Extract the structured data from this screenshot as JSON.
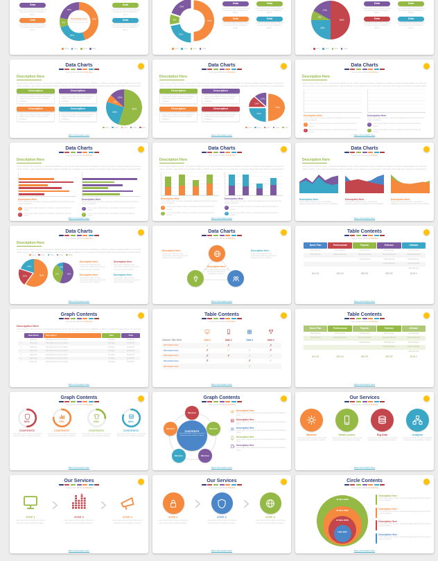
{
  "theme": {
    "navy": "#2d3d77",
    "red": "#c4464d",
    "green": "#94b944",
    "green_light": "#aec878",
    "purple": "#7d5aa0",
    "orange": "#f5893d",
    "teal": "#3aa7c7",
    "blue": "#4a86c8",
    "yellow": "#ffc20e",
    "check": "#7ab648",
    "cross": "#cc4b4b",
    "bg": "#ededed"
  },
  "common": {
    "subtitle": "Your great subtitle",
    "subtitle_accent": "in this line",
    "footer_link": "More information here",
    "desc_heading": "Description Here",
    "desc_button": "Description",
    "data_pill": "Data",
    "legend_label": "Data",
    "para_long": "Lorem ipsum dolor sit amet, consectetur adipiscing elit, sed do eiusmod tempor incididunt ut labore et dolore magna aliqua. Ut enim ad minim veniam, quis nostrud exercitation ullamco laboris nisi ut aliquip ex ea commodo consequat. Duis aute irure dolor in reprehenderit in voluptate velit esse cillum.",
    "para_small": "Lorem ipsum dolor sit amet, consectetur adipiscing elit sed do eiusmod tempor incididunt.",
    "para_tiny": "Lorem ipsum dolor sit amet, elit sed do eiusmod tempor incididunt ut labore.",
    "bullet_text": "Lorem ipsum dolor sit amet, consectetur elit sed do eiusmod tempor.",
    "dash_colors": [
      "#2d3d77",
      "#c4464d",
      "#94b944",
      "#7d5aa0",
      "#f5893d",
      "#3aa7c7",
      "#9e3a40"
    ]
  },
  "slides": [
    {
      "type": "donut_callouts",
      "donut": {
        "values": [
          45,
          25,
          8,
          22
        ],
        "colors": [
          "orange",
          "teal",
          "green",
          "purple"
        ],
        "labels": [
          "45%",
          "25%",
          "8%",
          "22%"
        ],
        "center_title": "Description Here"
      },
      "pills_left": [
        "purple",
        "orange"
      ],
      "pills_right": [
        "green",
        "teal"
      ]
    },
    {
      "type": "donut_exploded",
      "donut": {
        "values": [
          50,
          22,
          8,
          20
        ],
        "colors": [
          "orange",
          "teal",
          "green",
          "purple"
        ],
        "labels": [
          "50%",
          "22%",
          "8%",
          "20%"
        ]
      },
      "pills": [
        "purple",
        "green",
        "orange",
        "teal"
      ]
    },
    {
      "type": "pie_callouts",
      "pie": {
        "values": [
          50,
          25,
          8,
          17
        ],
        "colors": [
          "red",
          "teal",
          "green",
          "purple"
        ],
        "labels": [
          "50%",
          "25%",
          "8%",
          "17%"
        ]
      },
      "pills": [
        "purple",
        "green",
        "red",
        "teal"
      ]
    },
    {
      "type": "pie_desc",
      "title": "Data Charts",
      "buttons": [
        "green",
        "purple",
        "orange",
        "teal"
      ],
      "pie": {
        "values": [
          55,
          25,
          7,
          13
        ],
        "colors": [
          "green",
          "teal",
          "orange",
          "purple"
        ],
        "labels": [
          "55%",
          "25%",
          "7%",
          "13%"
        ]
      },
      "legend": [
        "green",
        "teal",
        "orange",
        "purple",
        "red"
      ]
    },
    {
      "type": "pie_desc",
      "title": "Data Charts",
      "pie3d": true,
      "buttons": [
        "green",
        "purple",
        "orange",
        "red"
      ],
      "pie": {
        "values": [
          50,
          25,
          13,
          12
        ],
        "colors": [
          "orange",
          "teal",
          "red",
          "purple"
        ],
        "labels": [
          "50%",
          "25%",
          "13%",
          "12%"
        ]
      },
      "legend": [
        "orange",
        "teal",
        "red",
        "purple",
        "green"
      ]
    },
    {
      "type": "grouped_bars",
      "title": "Data Charts",
      "charts": [
        {
          "colors": [
            "orange",
            "red"
          ],
          "pairs": [
            [
              45,
              80
            ],
            [
              55,
              92
            ],
            [
              70,
              40
            ],
            [
              90,
              58
            ]
          ],
          "accent": "orange",
          "bullets": [
            "orange",
            "red"
          ]
        },
        {
          "colors": [
            "purple",
            "green"
          ],
          "pairs": [
            [
              48,
              78
            ],
            [
              55,
              95
            ],
            [
              60,
              45
            ],
            [
              85,
              50
            ]
          ],
          "accent": "purple",
          "bullets": [
            "purple",
            "green"
          ]
        }
      ]
    },
    {
      "type": "hbars",
      "title": "Data Charts",
      "charts": [
        {
          "colors": [
            "orange",
            "red"
          ],
          "values": [
            62,
            95,
            50,
            75,
            88,
            45
          ],
          "accent": "orange",
          "bullets": [
            "orange",
            "red"
          ]
        },
        {
          "colors": [
            "purple",
            "green"
          ],
          "values": [
            95,
            55,
            70,
            45,
            88,
            65
          ],
          "accent": "purple",
          "bullets": [
            "purple",
            "green"
          ]
        }
      ]
    },
    {
      "type": "stacked_bars",
      "title": "Data Charts",
      "charts": [
        {
          "colors": [
            "orange",
            "green"
          ],
          "cols": [
            [
              38,
              48
            ],
            [
              45,
              50
            ],
            [
              42,
              28
            ],
            [
              52,
              45
            ]
          ],
          "accent": "orange",
          "bullets": [
            "orange",
            "green"
          ]
        },
        {
          "colors": [
            "purple",
            "teal"
          ],
          "cols": [
            [
              45,
              50
            ],
            [
              40,
              55
            ],
            [
              32,
              22
            ],
            [
              48,
              30
            ]
          ],
          "accent": "purple",
          "bullets": [
            "purple",
            "teal"
          ]
        }
      ]
    },
    {
      "type": "areas",
      "title": "Data Charts",
      "charts": [
        {
          "back": "purple",
          "main": "teal",
          "back_pts": [
            0.55,
            0.75,
            0.52,
            0.9,
            0.62,
            0.78,
            0.85
          ],
          "main_pts": [
            0.5,
            0.62,
            0.45,
            0.78,
            0.5,
            0.4,
            0.45
          ],
          "accent": "teal"
        },
        {
          "back": "blue",
          "main": "red",
          "back_pts": [
            0.85,
            0.55,
            0.5,
            0.55,
            0.62,
            0.8,
            0.9
          ],
          "main_pts": [
            0.55,
            0.62,
            0.68,
            0.6,
            0.52,
            0.45,
            0.4
          ],
          "accent": "red"
        },
        {
          "back": "green",
          "main": "orange",
          "back_pts": [
            0.9,
            0.62,
            0.45,
            0.4,
            0.42,
            0.5,
            0.6
          ],
          "main_pts": [
            0.75,
            0.55,
            0.48,
            0.45,
            0.5,
            0.55,
            0.5
          ],
          "accent": "orange"
        }
      ]
    },
    {
      "type": "two_pies",
      "title": "Data Charts",
      "legend": [
        "orange",
        "red",
        "teal",
        "purple",
        "green"
      ],
      "pie1": {
        "values": [
          60,
          20,
          20
        ],
        "colors": [
          "orange",
          "red",
          "teal"
        ],
        "labels": [
          "60%",
          "20%",
          "20%"
        ]
      },
      "pie2": {
        "values": [
          55,
          35,
          10
        ],
        "colors": [
          "purple",
          "green",
          "teal"
        ],
        "labels": [
          "55%",
          "35%",
          "10%"
        ]
      },
      "blocks": [
        "orange",
        "red",
        "orange",
        "teal"
      ]
    },
    {
      "type": "triangle",
      "title": "Data Charts",
      "nodes": [
        {
          "color": "orange",
          "icon": "globe"
        },
        {
          "color": "green",
          "icon": "diamond"
        },
        {
          "color": "blue",
          "icon": "people"
        }
      ],
      "center_color": "orange",
      "side_colors": [
        "orange",
        "teal"
      ]
    },
    {
      "type": "pricing",
      "title": "Table Contents",
      "palette": [
        "blue",
        "red",
        "green",
        "purple",
        "teal"
      ],
      "headers": [
        "Basic Plan",
        "Professional",
        "Popular",
        "Extreme",
        "Ultimate"
      ],
      "rows": [
        [
          "First Service",
          "First Service",
          "First Service",
          "First Service",
          "First Service"
        ],
        [
          "First Service",
          "Second Service",
          "Second Service",
          "Second Service",
          "Second Service"
        ],
        [
          "-",
          "-",
          "Third Service",
          "Third Service",
          "Third Service"
        ],
        [
          "-",
          "-",
          "-",
          "Fourth Service",
          "Fourth Service"
        ],
        [
          "-",
          "-",
          "-",
          "-",
          "Fifth Service"
        ]
      ],
      "prices": [
        "$10.00",
        "$29.00",
        "$50.99",
        "$99.99",
        "$129.0"
      ]
    },
    {
      "type": "data_table",
      "title": "Graph Contents",
      "accent": "red",
      "headers": [
        "Data Name",
        "Description",
        "Date",
        "Total"
      ],
      "header_colors": [
        "purple",
        "orange",
        "green",
        "purple"
      ],
      "rows": [
        [
          "1",
          "Data Here",
          "Information here in the column",
          "Thursday",
          "$1,000.00"
        ],
        [
          "2",
          "Data Here",
          "Information here in the column",
          "Thursday",
          "$1,000.00"
        ],
        [
          "3",
          "Data Here",
          "Information here in the column",
          "Thursday",
          "$1,000.00"
        ],
        [
          "4",
          "Data Here",
          "Information here in the column",
          "Thursday",
          "$1,000.00"
        ],
        [
          "5",
          "Data Here",
          "Information here in the column",
          "Thursday",
          "$1,000.00"
        ],
        [
          "6",
          "Data Here",
          "Information here in the column",
          "Thursday",
          "$1,000.00"
        ],
        [
          "7",
          "Data Here",
          "Information here in the column",
          "Thursday",
          "$1,000.00"
        ]
      ]
    },
    {
      "type": "check_table",
      "title": "Table Contents",
      "corner": "Column Title Here",
      "row_label": "Information Here",
      "cols": [
        {
          "label": "Data 1",
          "color": "orange",
          "icon": "monitor"
        },
        {
          "label": "Data 2",
          "color": "red",
          "icon": "phone"
        },
        {
          "label": "Data 3",
          "color": "blue",
          "icon": "grid"
        },
        {
          "label": "Data 4",
          "color": "red",
          "icon": "trophy"
        }
      ],
      "row_colors": [
        "orange",
        "blue",
        "orange",
        "blue",
        "orange"
      ],
      "marks": [
        [
          "check",
          "cross",
          "",
          "cross"
        ],
        [
          "cross",
          "check",
          "check",
          "cross"
        ],
        [
          "cross",
          "cross",
          "check",
          "check"
        ],
        [
          "cross",
          "",
          "cross",
          "check"
        ],
        [
          "",
          "",
          "check",
          ""
        ]
      ]
    },
    {
      "type": "pricing",
      "title": "Table Contents",
      "tint": "green",
      "palette": [
        "green_light",
        "green",
        "green_light",
        "green",
        "green_light"
      ],
      "headers": [
        "Basic Plan",
        "Professional",
        "Popular",
        "Extreme",
        "Ultimate"
      ],
      "rows": [
        [
          "First Service",
          "First Service",
          "First Service",
          "First Service",
          "First Service"
        ],
        [
          "First Service",
          "Second Service",
          "Second Service",
          "Second Service",
          "Second Service"
        ],
        [
          "-",
          "-",
          "Third Service",
          "Third Service",
          "Third Service"
        ],
        [
          "-",
          "-",
          "-",
          "Fourth Service",
          "Fourth Service"
        ],
        [
          "-",
          "-",
          "-",
          "-",
          "Fifth Service"
        ]
      ],
      "prices": [
        "$10.00",
        "$29.00",
        "$50.99",
        "$99.99",
        "$129.0"
      ]
    },
    {
      "type": "rings",
      "title": "Graph Contents",
      "label": "CONTENTS",
      "items": [
        {
          "pct": 50,
          "color": "red",
          "icon": "shield"
        },
        {
          "pct": 75,
          "color": "orange",
          "icon": "chart"
        },
        {
          "pct": 25,
          "color": "green",
          "icon": "shirt"
        },
        {
          "pct": 80,
          "color": "teal",
          "icon": "db"
        }
      ]
    },
    {
      "type": "bubble",
      "title": "Graph Contents",
      "center_label": "CONTENTS",
      "center_color": "blue",
      "satellite_label": "Data Here",
      "satellites": [
        "red",
        "orange",
        "green",
        "teal",
        "purple"
      ],
      "list": [
        {
          "color": "orange",
          "icon": "gear"
        },
        {
          "color": "red",
          "icon": "db"
        },
        {
          "color": "blue",
          "icon": "people"
        },
        {
          "color": "green",
          "icon": "phone"
        },
        {
          "color": "purple",
          "icon": "puzzle"
        }
      ]
    },
    {
      "type": "services",
      "title": "Our Services",
      "items": [
        {
          "label": "Machine",
          "color": "orange",
          "icon": "gear"
        },
        {
          "label": "Mobile phone",
          "color": "green",
          "icon": "phone"
        },
        {
          "label": "Big Data",
          "color": "red",
          "icon": "db"
        },
        {
          "label": "Analysis",
          "color": "teal",
          "icon": "network"
        }
      ]
    },
    {
      "type": "steps_icons",
      "title": "Our Services",
      "items": [
        {
          "label": "STEP 1",
          "color": "green",
          "icon": "monitor"
        },
        {
          "label": "STEP 2",
          "color": "red",
          "icon": "eq"
        },
        {
          "label": "STEP 3",
          "color": "orange",
          "icon": "megaphone"
        }
      ]
    },
    {
      "type": "steps_circles",
      "title": "Our Services",
      "items": [
        {
          "label": "STEP 1",
          "color": "orange",
          "icon": "lock"
        },
        {
          "label": "STEP 2",
          "color": "blue",
          "icon": "shield"
        },
        {
          "label": "STEP 3",
          "color": "green",
          "icon": "globe"
        }
      ]
    },
    {
      "type": "nested",
      "title": "Circle Contents",
      "circles": [
        {
          "label": "40 MILLIONS",
          "color": "green"
        },
        {
          "label": "30 MILLIONS",
          "color": "orange"
        },
        {
          "label": "20 MILLIONS",
          "color": "red"
        },
        {
          "label": "5 MILLIONS",
          "color": "blue"
        }
      ],
      "list_colors": [
        "green",
        "orange",
        "red",
        "blue"
      ]
    }
  ]
}
